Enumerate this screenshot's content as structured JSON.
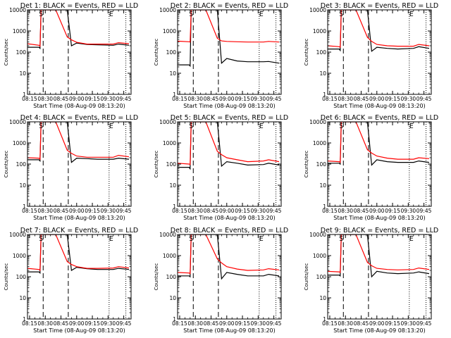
{
  "figure": {
    "x_ticks": [
      "08:15",
      "08:30",
      "08:45",
      "09:00",
      "09:15",
      "09:30",
      "09:45"
    ],
    "y_ticks": [
      "1",
      "10",
      "100",
      "1000",
      "10000"
    ],
    "ylabel": "Counts/sec",
    "xlabel": "Start Time (08-Aug-09 08:13:20)",
    "colors": {
      "events": "#000000",
      "lld": "#ff0000",
      "axes": "#000000"
    },
    "interval_markers": [
      "S",
      "E"
    ]
  },
  "chart_data": [
    {
      "type": "line",
      "title": "Det 1: BLACK = Events, RED = LLD",
      "xlabel": "",
      "ylabel": "Counts/sec",
      "yscale": "log",
      "ylim": [
        1,
        10000
      ],
      "x": [
        "08:13",
        "08:24",
        "08:25",
        "08:26",
        "08:40",
        "08:51",
        "08:55",
        "09:00",
        "09:10",
        "09:20",
        "09:35",
        "09:40",
        "09:50"
      ],
      "series": [
        {
          "name": "BLACK = Events",
          "color": "#000000",
          "values": [
            170,
            170,
            150,
            10000,
            10000,
            10000,
            200,
            270,
            230,
            220,
            210,
            240,
            210
          ]
        },
        {
          "name": "RED = LLD",
          "color": "#ff0000",
          "values": [
            250,
            210,
            190,
            10000,
            10000,
            520,
            380,
            290,
            240,
            240,
            240,
            280,
            250
          ]
        }
      ],
      "markers": {
        "S": "08:26",
        "E": "09:33",
        "dashed": [
          "08:28",
          "08:52"
        ],
        "dotted": [
          "09:31",
          "09:47"
        ]
      }
    },
    {
      "type": "line",
      "title": "Det 2: BLACK = Events, RED = LLD",
      "xlabel": "",
      "ylabel": "Counts/sec",
      "yscale": "log",
      "ylim": [
        1,
        10000
      ],
      "x": [
        "08:13",
        "08:24",
        "08:25",
        "08:26",
        "08:40",
        "08:51",
        "08:55",
        "09:00",
        "09:10",
        "09:20",
        "09:35",
        "09:40",
        "09:50"
      ],
      "series": [
        {
          "name": "BLACK = Events",
          "color": "#000000",
          "values": [
            25,
            25,
            22,
            10000,
            10000,
            10000,
            30,
            50,
            38,
            35,
            35,
            36,
            30
          ]
        },
        {
          "name": "RED = LLD",
          "color": "#ff0000",
          "values": [
            330,
            310,
            300,
            10000,
            10000,
            450,
            340,
            320,
            310,
            300,
            300,
            320,
            300
          ]
        }
      ],
      "markers": {
        "S": "08:26",
        "E": "09:33",
        "dashed": [
          "08:28",
          "08:52"
        ],
        "dotted": [
          "09:31",
          "09:47"
        ]
      }
    },
    {
      "type": "line",
      "title": "Det 3: BLACK = Events, RED = LLD",
      "xlabel": "",
      "ylabel": "Counts/sec",
      "yscale": "log",
      "ylim": [
        1,
        10000
      ],
      "x": [
        "08:13",
        "08:24",
        "08:25",
        "08:26",
        "08:40",
        "08:51",
        "08:55",
        "09:00",
        "09:10",
        "09:20",
        "09:35",
        "09:40",
        "09:50"
      ],
      "series": [
        {
          "name": "BLACK = Events",
          "color": "#000000",
          "values": [
            140,
            140,
            120,
            10000,
            10000,
            10000,
            110,
            170,
            150,
            140,
            150,
            180,
            150
          ]
        },
        {
          "name": "RED = LLD",
          "color": "#ff0000",
          "values": [
            200,
            180,
            170,
            10000,
            10000,
            500,
            320,
            230,
            200,
            190,
            190,
            230,
            200
          ]
        }
      ],
      "markers": {
        "S": "08:26",
        "E": "09:33",
        "dashed": [
          "08:28",
          "08:52"
        ],
        "dotted": [
          "09:31",
          "09:47"
        ]
      }
    },
    {
      "type": "line",
      "title": "Det 4: BLACK = Events, RED = LLD",
      "xlabel": "",
      "ylabel": "Counts/sec",
      "yscale": "log",
      "ylim": [
        1,
        10000
      ],
      "x": [
        "08:13",
        "08:24",
        "08:25",
        "08:26",
        "08:40",
        "08:51",
        "08:55",
        "09:00",
        "09:10",
        "09:20",
        "09:35",
        "09:40",
        "09:50"
      ],
      "series": [
        {
          "name": "BLACK = Events",
          "color": "#000000",
          "values": [
            160,
            160,
            140,
            10000,
            10000,
            10000,
            120,
            190,
            180,
            170,
            170,
            190,
            170
          ]
        },
        {
          "name": "RED = LLD",
          "color": "#ff0000",
          "values": [
            200,
            190,
            170,
            10000,
            10000,
            450,
            320,
            240,
            210,
            210,
            210,
            260,
            220
          ]
        }
      ],
      "markers": {
        "S": "08:26",
        "E": "09:33",
        "dashed": [
          "08:28",
          "08:52"
        ],
        "dotted": [
          "09:31",
          "09:47"
        ]
      }
    },
    {
      "type": "line",
      "title": "Det 5: BLACK = Events, RED = LLD",
      "xlabel": "",
      "ylabel": "Counts/sec",
      "yscale": "log",
      "ylim": [
        1,
        10000
      ],
      "x": [
        "08:13",
        "08:24",
        "08:25",
        "08:26",
        "08:40",
        "08:51",
        "08:55",
        "09:00",
        "09:10",
        "09:20",
        "09:35",
        "09:40",
        "09:50"
      ],
      "series": [
        {
          "name": "BLACK = Events",
          "color": "#000000",
          "values": [
            70,
            70,
            60,
            10000,
            10000,
            10000,
            80,
            130,
            110,
            90,
            95,
            110,
            90
          ]
        },
        {
          "name": "RED = LLD",
          "color": "#ff0000",
          "values": [
            110,
            100,
            95,
            10000,
            10000,
            400,
            280,
            200,
            160,
            130,
            140,
            160,
            130
          ]
        }
      ],
      "markers": {
        "S": "08:26",
        "E": "09:33",
        "dashed": [
          "08:28",
          "08:52"
        ],
        "dotted": [
          "09:31",
          "09:47"
        ]
      }
    },
    {
      "type": "line",
      "title": "Det 6: BLACK = Events, RED = LLD",
      "xlabel": "",
      "ylabel": "Counts/sec",
      "yscale": "log",
      "ylim": [
        1,
        10000
      ],
      "x": [
        "08:13",
        "08:24",
        "08:25",
        "08:26",
        "08:40",
        "08:51",
        "08:55",
        "09:00",
        "09:10",
        "09:20",
        "09:35",
        "09:40",
        "09:50"
      ],
      "series": [
        {
          "name": "BLACK = Events",
          "color": "#000000",
          "values": [
            110,
            110,
            100,
            10000,
            10000,
            10000,
            90,
            160,
            130,
            120,
            120,
            140,
            120
          ]
        },
        {
          "name": "RED = LLD",
          "color": "#ff0000",
          "values": [
            140,
            130,
            120,
            10000,
            10000,
            480,
            330,
            240,
            190,
            170,
            170,
            200,
            180
          ]
        }
      ],
      "markers": {
        "S": "08:26",
        "E": "09:33",
        "dashed": [
          "08:28",
          "08:52"
        ],
        "dotted": [
          "09:31",
          "09:47"
        ]
      }
    },
    {
      "type": "line",
      "title": "Det 7: BLACK = Events, RED = LLD",
      "xlabel": "Start Time (08-Aug-09 08:13:20)",
      "ylabel": "Counts/sec",
      "yscale": "log",
      "ylim": [
        1,
        10000
      ],
      "x": [
        "08:13",
        "08:24",
        "08:25",
        "08:26",
        "08:40",
        "08:51",
        "08:55",
        "09:00",
        "09:10",
        "09:20",
        "09:35",
        "09:40",
        "09:50"
      ],
      "series": [
        {
          "name": "BLACK = Events",
          "color": "#000000",
          "values": [
            170,
            170,
            150,
            10000,
            10000,
            10000,
            200,
            280,
            240,
            220,
            220,
            250,
            220
          ]
        },
        {
          "name": "RED = LLD",
          "color": "#ff0000",
          "values": [
            250,
            220,
            200,
            10000,
            10000,
            520,
            380,
            300,
            250,
            250,
            260,
            300,
            260
          ]
        }
      ],
      "markers": {
        "S": "08:26",
        "E": "09:33",
        "dashed": [
          "08:28",
          "08:52"
        ],
        "dotted": [
          "09:31",
          "09:47"
        ]
      }
    },
    {
      "type": "line",
      "title": "Det 8: BLACK = Events, RED = LLD",
      "xlabel": "Start Time (08-Aug-09 08:13:20)",
      "ylabel": "Counts/sec",
      "yscale": "log",
      "ylim": [
        1,
        10000
      ],
      "x": [
        "08:13",
        "08:24",
        "08:25",
        "08:26",
        "08:40",
        "08:51",
        "08:55",
        "09:00",
        "09:10",
        "09:20",
        "09:35",
        "09:40",
        "09:50"
      ],
      "series": [
        {
          "name": "BLACK = Events",
          "color": "#000000",
          "values": [
            110,
            110,
            100,
            10000,
            10000,
            10000,
            80,
            160,
            130,
            110,
            110,
            130,
            110
          ]
        },
        {
          "name": "RED = LLD",
          "color": "#ff0000",
          "values": [
            160,
            150,
            140,
            10000,
            10000,
            700,
            450,
            300,
            230,
            200,
            210,
            240,
            210
          ]
        }
      ],
      "markers": {
        "S": "08:26",
        "E": "09:33",
        "dashed": [
          "08:28",
          "08:52"
        ],
        "dotted": [
          "09:31",
          "09:47"
        ]
      }
    },
    {
      "type": "line",
      "title": "Det 9: BLACK = Events, RED = LLD",
      "xlabel": "Start Time (08-Aug-09 08:13:20)",
      "ylabel": "Counts/sec",
      "yscale": "log",
      "ylim": [
        1,
        10000
      ],
      "x": [
        "08:13",
        "08:24",
        "08:25",
        "08:26",
        "08:40",
        "08:51",
        "08:55",
        "09:00",
        "09:10",
        "09:20",
        "09:35",
        "09:40",
        "09:50"
      ],
      "series": [
        {
          "name": "BLACK = Events",
          "color": "#000000",
          "values": [
            120,
            120,
            110,
            10000,
            10000,
            10000,
            100,
            180,
            150,
            140,
            150,
            170,
            140
          ]
        },
        {
          "name": "RED = LLD",
          "color": "#ff0000",
          "values": [
            180,
            170,
            160,
            10000,
            10000,
            480,
            330,
            250,
            220,
            210,
            220,
            260,
            220
          ]
        }
      ],
      "markers": {
        "S": "08:26",
        "E": "09:33",
        "dashed": [
          "08:28",
          "08:52"
        ],
        "dotted": [
          "09:31",
          "09:47"
        ]
      }
    }
  ]
}
